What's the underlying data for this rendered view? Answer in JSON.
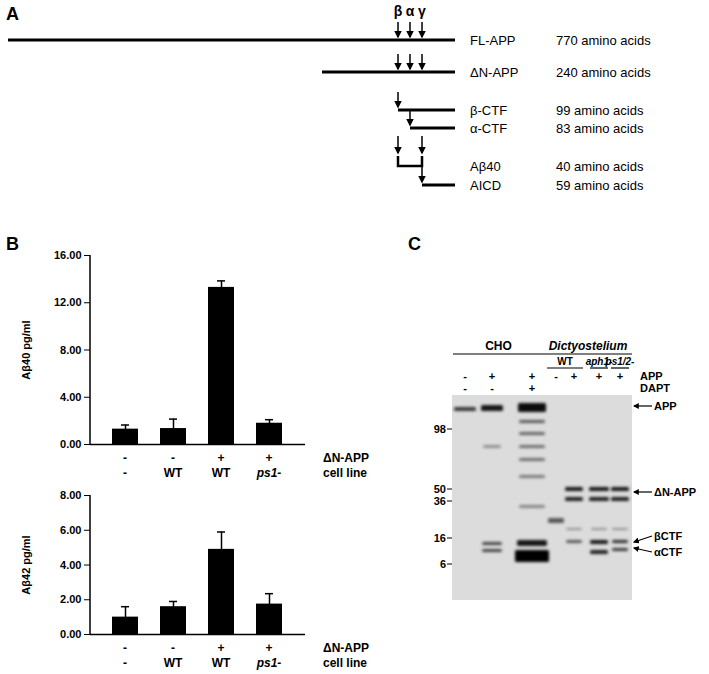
{
  "panel_a": {
    "label": "A",
    "cleavage_sites": [
      "β",
      "α",
      "γ"
    ],
    "fragments": [
      {
        "name": "FL-APP",
        "length": "770 amino acids"
      },
      {
        "name": "ΔN-APP",
        "length": "240 amino acids"
      },
      {
        "name": "β-CTF",
        "length": "99 amino acids"
      },
      {
        "name": "α-CTF",
        "length": "83 amino acids"
      },
      {
        "name": "Aβ40",
        "length": "40 amino acids"
      },
      {
        "name": "AICD",
        "length": "59 amino acids"
      }
    ]
  },
  "panel_b": {
    "label": "B",
    "condition_rows": [
      {
        "label": "ΔN-APP",
        "values": [
          "-",
          "-",
          "+",
          "+"
        ]
      },
      {
        "label": "cell line",
        "values": [
          "-",
          "WT",
          "WT",
          "ps1-"
        ]
      }
    ]
  },
  "chart_data": [
    {
      "type": "bar",
      "y_label": "Aβ40 pg/ml",
      "categories": [
        null,
        null,
        null,
        null
      ],
      "values": [
        1.3,
        1.35,
        13.3,
        1.8
      ],
      "error": [
        0.35,
        0.8,
        0.55,
        0.3
      ],
      "color": "#000000",
      "ylim": [
        0,
        16
      ],
      "yticks": [
        {
          "value": 0,
          "label": "0.00"
        },
        {
          "value": 4,
          "label": "4.00"
        },
        {
          "value": 8,
          "label": "8.00"
        },
        {
          "value": 12,
          "label": "12.00"
        },
        {
          "value": 16,
          "label": "16.00"
        }
      ]
    },
    {
      "type": "bar",
      "y_label": "Aβ42 pg/ml",
      "categories": [
        null,
        null,
        null,
        null
      ],
      "values": [
        1.0,
        1.6,
        4.9,
        1.75
      ],
      "error": [
        0.6,
        0.3,
        1.0,
        0.6
      ],
      "color": "#000000",
      "ylim": [
        0,
        8
      ],
      "yticks": [
        {
          "value": 0,
          "label": "0.00"
        },
        {
          "value": 2,
          "label": "2.00"
        },
        {
          "value": 4,
          "label": "4.00"
        },
        {
          "value": 6,
          "label": "6.00"
        },
        {
          "value": 8,
          "label": "8.00"
        }
      ]
    }
  ],
  "panel_c": {
    "label": "C",
    "row_labels": [
      "APP",
      "DAPT"
    ],
    "lane_groups": [
      {
        "name": "CHO",
        "subgroups": [
          {
            "name": null,
            "lanes": [
              {
                "APP": "-",
                "DAPT": "-"
              },
              {
                "APP": "+",
                "DAPT": "-"
              },
              {
                "APP": "+",
                "DAPT": "+"
              }
            ]
          }
        ]
      },
      {
        "name": "Dictyostelium",
        "subgroups": [
          {
            "name": "WT",
            "lanes": [
              {
                "APP": "-",
                "DAPT": null
              },
              {
                "APP": "+",
                "DAPT": null
              }
            ]
          },
          {
            "name": "aph1-",
            "lanes": [
              {
                "APP": "+",
                "DAPT": null
              }
            ]
          },
          {
            "name": "ps1/2-",
            "lanes": [
              {
                "APP": "+",
                "DAPT": null
              }
            ]
          }
        ]
      }
    ],
    "mw_markers": [
      98,
      50,
      36,
      16,
      6
    ],
    "band_labels": [
      "APP",
      "ΔN-APP",
      "βCTF",
      "αCTF"
    ]
  }
}
